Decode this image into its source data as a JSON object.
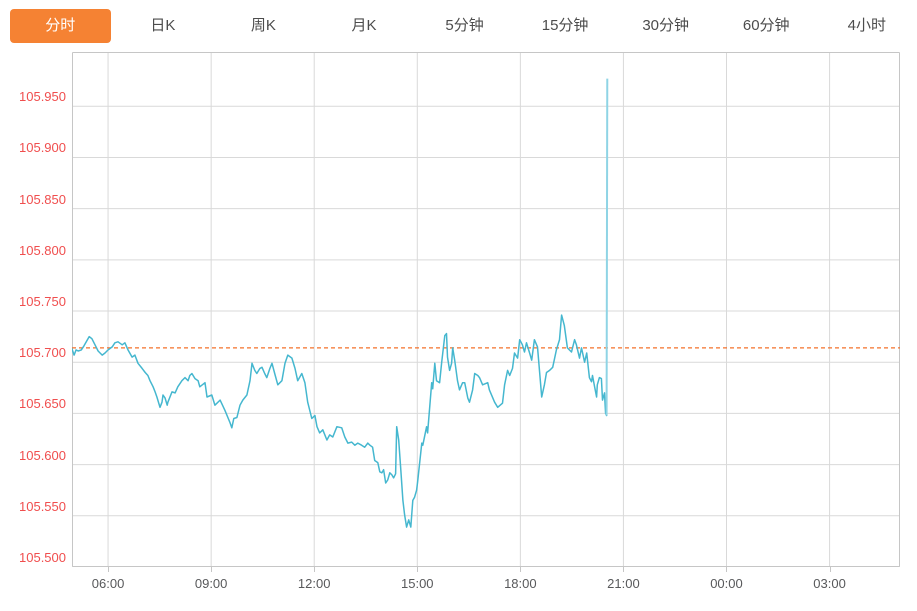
{
  "tabs": [
    {
      "id": "minute",
      "label": "分时",
      "active": true
    },
    {
      "id": "daily-k",
      "label": "日K",
      "active": false
    },
    {
      "id": "weekly-k",
      "label": "周K",
      "active": false
    },
    {
      "id": "monthly-k",
      "label": "月K",
      "active": false
    },
    {
      "id": "5min",
      "label": "5分钟",
      "active": false
    },
    {
      "id": "15min",
      "label": "15分钟",
      "active": false
    },
    {
      "id": "30min",
      "label": "30分钟",
      "active": false
    },
    {
      "id": "60min",
      "label": "60分钟",
      "active": false
    },
    {
      "id": "4hour",
      "label": "4小时",
      "active": false
    }
  ],
  "colors": {
    "accent": "#f58233",
    "tab_text": "#4c4c4c",
    "line": "#45b7cf",
    "spike": "#8fd4e5",
    "reference": "#f4702a",
    "y_label": "#f04e4e",
    "x_label": "#58595b",
    "grid": "#d9d9d9",
    "border": "#c6c6c6"
  },
  "chart_data": {
    "type": "line",
    "title": "",
    "xlabel": "",
    "ylabel": "",
    "x_unit": "hour_of_day_decimal",
    "xlim": [
      4.95,
      29.05
    ],
    "ylim": [
      105.5,
      106.003
    ],
    "grid": true,
    "legend": false,
    "x_ticks": [
      {
        "t": 6,
        "label": "06:00"
      },
      {
        "t": 9,
        "label": "09:00"
      },
      {
        "t": 12,
        "label": "12:00"
      },
      {
        "t": 15,
        "label": "15:00"
      },
      {
        "t": 18,
        "label": "18:00"
      },
      {
        "t": 21,
        "label": "21:00"
      },
      {
        "t": 24,
        "label": "00:00"
      },
      {
        "t": 27,
        "label": "03:00"
      }
    ],
    "y_ticks": [
      {
        "v": 105.95,
        "label": "105.950"
      },
      {
        "v": 105.9,
        "label": "105.900"
      },
      {
        "v": 105.85,
        "label": "105.850"
      },
      {
        "v": 105.8,
        "label": "105.800"
      },
      {
        "v": 105.75,
        "label": "105.750"
      },
      {
        "v": 105.7,
        "label": "105.700"
      },
      {
        "v": 105.65,
        "label": "105.650"
      },
      {
        "v": 105.6,
        "label": "105.600"
      },
      {
        "v": 105.55,
        "label": "105.550"
      },
      {
        "v": 105.5,
        "label": "105.500"
      }
    ],
    "reference_line": 105.714,
    "series": [
      {
        "name": "price",
        "points": [
          [
            4.95,
            105.713
          ],
          [
            5.01,
            105.707
          ],
          [
            5.07,
            105.712
          ],
          [
            5.13,
            105.711
          ],
          [
            5.22,
            105.712
          ],
          [
            5.3,
            105.716
          ],
          [
            5.45,
            105.725
          ],
          [
            5.53,
            105.723
          ],
          [
            5.62,
            105.717
          ],
          [
            5.71,
            105.711
          ],
          [
            5.83,
            105.707
          ],
          [
            5.91,
            105.709
          ],
          [
            6.0,
            105.712
          ],
          [
            6.12,
            105.715
          ],
          [
            6.2,
            105.719
          ],
          [
            6.29,
            105.72
          ],
          [
            6.41,
            105.717
          ],
          [
            6.49,
            105.719
          ],
          [
            6.58,
            105.712
          ],
          [
            6.7,
            105.705
          ],
          [
            6.78,
            105.707
          ],
          [
            6.87,
            105.699
          ],
          [
            6.99,
            105.694
          ],
          [
            7.08,
            105.69
          ],
          [
            7.16,
            105.687
          ],
          [
            7.22,
            105.682
          ],
          [
            7.31,
            105.676
          ],
          [
            7.37,
            105.671
          ],
          [
            7.42,
            105.666
          ],
          [
            7.51,
            105.656
          ],
          [
            7.57,
            105.661
          ],
          [
            7.6,
            105.668
          ],
          [
            7.66,
            105.665
          ],
          [
            7.72,
            105.658
          ],
          [
            7.74,
            105.661
          ],
          [
            7.86,
            105.671
          ],
          [
            7.95,
            105.67
          ],
          [
            8.03,
            105.676
          ],
          [
            8.15,
            105.682
          ],
          [
            8.24,
            105.685
          ],
          [
            8.33,
            105.682
          ],
          [
            8.38,
            105.687
          ],
          [
            8.44,
            105.689
          ],
          [
            8.53,
            105.684
          ],
          [
            8.62,
            105.682
          ],
          [
            8.67,
            105.676
          ],
          [
            8.82,
            105.68
          ],
          [
            8.88,
            105.666
          ],
          [
            9.02,
            105.668
          ],
          [
            9.11,
            105.658
          ],
          [
            9.26,
            105.663
          ],
          [
            9.4,
            105.653
          ],
          [
            9.55,
            105.641
          ],
          [
            9.6,
            105.636
          ],
          [
            9.66,
            105.645
          ],
          [
            9.75,
            105.646
          ],
          [
            9.84,
            105.658
          ],
          [
            9.92,
            105.663
          ],
          [
            10.04,
            105.668
          ],
          [
            10.13,
            105.682
          ],
          [
            10.19,
            105.699
          ],
          [
            10.27,
            105.692
          ],
          [
            10.33,
            105.689
          ],
          [
            10.42,
            105.694
          ],
          [
            10.48,
            105.695
          ],
          [
            10.56,
            105.689
          ],
          [
            10.62,
            105.685
          ],
          [
            10.71,
            105.694
          ],
          [
            10.77,
            105.699
          ],
          [
            10.85,
            105.689
          ],
          [
            10.94,
            105.678
          ],
          [
            11.06,
            105.682
          ],
          [
            11.15,
            105.699
          ],
          [
            11.23,
            105.707
          ],
          [
            11.35,
            105.704
          ],
          [
            11.44,
            105.694
          ],
          [
            11.52,
            105.682
          ],
          [
            11.64,
            105.689
          ],
          [
            11.73,
            105.68
          ],
          [
            11.81,
            105.661
          ],
          [
            11.93,
            105.645
          ],
          [
            12.02,
            105.648
          ],
          [
            12.08,
            105.637
          ],
          [
            12.16,
            105.631
          ],
          [
            12.25,
            105.634
          ],
          [
            12.37,
            105.624
          ],
          [
            12.45,
            105.629
          ],
          [
            12.54,
            105.627
          ],
          [
            12.66,
            105.637
          ],
          [
            12.8,
            105.636
          ],
          [
            12.89,
            105.627
          ],
          [
            12.98,
            105.621
          ],
          [
            13.09,
            105.622
          ],
          [
            13.18,
            105.619
          ],
          [
            13.27,
            105.621
          ],
          [
            13.38,
            105.619
          ],
          [
            13.47,
            105.617
          ],
          [
            13.56,
            105.621
          ],
          [
            13.62,
            105.619
          ],
          [
            13.7,
            105.617
          ],
          [
            13.76,
            105.604
          ],
          [
            13.85,
            105.602
          ],
          [
            13.91,
            105.593
          ],
          [
            13.97,
            105.592
          ],
          [
            14.02,
            105.595
          ],
          [
            14.08,
            105.582
          ],
          [
            14.14,
            105.585
          ],
          [
            14.2,
            105.592
          ],
          [
            14.26,
            105.59
          ],
          [
            14.31,
            105.587
          ],
          [
            14.37,
            105.591
          ],
          [
            14.4,
            105.637
          ],
          [
            14.46,
            105.624
          ],
          [
            14.52,
            105.595
          ],
          [
            14.58,
            105.565
          ],
          [
            14.63,
            105.551
          ],
          [
            14.69,
            105.539
          ],
          [
            14.75,
            105.546
          ],
          [
            14.81,
            105.539
          ],
          [
            14.87,
            105.565
          ],
          [
            14.92,
            105.568
          ],
          [
            14.98,
            105.575
          ],
          [
            15.01,
            105.583
          ],
          [
            15.13,
            105.621
          ],
          [
            15.16,
            105.619
          ],
          [
            15.27,
            105.637
          ],
          [
            15.3,
            105.631
          ],
          [
            15.42,
            105.68
          ],
          [
            15.45,
            105.674
          ],
          [
            15.51,
            105.699
          ],
          [
            15.56,
            105.682
          ],
          [
            15.65,
            105.68
          ],
          [
            15.71,
            105.7
          ],
          [
            15.8,
            105.726
          ],
          [
            15.85,
            105.728
          ],
          [
            15.88,
            105.705
          ],
          [
            15.94,
            105.692
          ],
          [
            16.0,
            105.699
          ],
          [
            16.03,
            105.714
          ],
          [
            16.09,
            105.702
          ],
          [
            16.17,
            105.682
          ],
          [
            16.23,
            105.673
          ],
          [
            16.32,
            105.68
          ],
          [
            16.38,
            105.68
          ],
          [
            16.47,
            105.665
          ],
          [
            16.52,
            105.661
          ],
          [
            16.61,
            105.673
          ],
          [
            16.67,
            105.689
          ],
          [
            16.76,
            105.687
          ],
          [
            16.81,
            105.685
          ],
          [
            16.9,
            105.678
          ],
          [
            17.05,
            105.68
          ],
          [
            17.1,
            105.673
          ],
          [
            17.25,
            105.661
          ],
          [
            17.34,
            105.656
          ],
          [
            17.48,
            105.66
          ],
          [
            17.54,
            105.678
          ],
          [
            17.63,
            105.692
          ],
          [
            17.69,
            105.687
          ],
          [
            17.77,
            105.694
          ],
          [
            17.83,
            105.709
          ],
          [
            17.92,
            105.704
          ],
          [
            17.98,
            105.722
          ],
          [
            18.06,
            105.717
          ],
          [
            18.12,
            105.71
          ],
          [
            18.18,
            105.719
          ],
          [
            18.27,
            105.709
          ],
          [
            18.33,
            105.702
          ],
          [
            18.41,
            105.722
          ],
          [
            18.5,
            105.715
          ],
          [
            18.62,
            105.666
          ],
          [
            18.7,
            105.678
          ],
          [
            18.76,
            105.69
          ],
          [
            18.85,
            105.692
          ],
          [
            18.94,
            105.695
          ],
          [
            19.05,
            105.712
          ],
          [
            19.14,
            105.722
          ],
          [
            19.2,
            105.746
          ],
          [
            19.28,
            105.736
          ],
          [
            19.37,
            105.714
          ],
          [
            19.49,
            105.71
          ],
          [
            19.58,
            105.722
          ],
          [
            19.63,
            105.717
          ],
          [
            19.72,
            105.704
          ],
          [
            19.78,
            105.714
          ],
          [
            19.87,
            105.7
          ],
          [
            19.93,
            105.709
          ],
          [
            20.01,
            105.685
          ],
          [
            20.07,
            105.681
          ],
          [
            20.1,
            105.687
          ],
          [
            20.16,
            105.676
          ],
          [
            20.22,
            105.666
          ],
          [
            20.24,
            105.678
          ],
          [
            20.3,
            105.685
          ],
          [
            20.36,
            105.684
          ],
          [
            20.39,
            105.663
          ],
          [
            20.45,
            105.67
          ],
          [
            20.48,
            105.65
          ],
          [
            20.51,
            105.648
          ],
          [
            20.53,
            105.977
          ]
        ]
      }
    ]
  }
}
